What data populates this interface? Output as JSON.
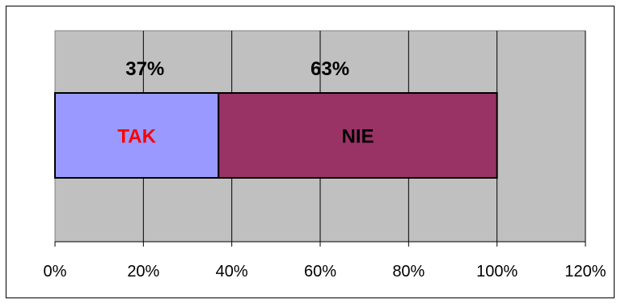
{
  "chart_data": {
    "type": "bar",
    "orientation": "horizontal",
    "stacked": true,
    "categories": [
      ""
    ],
    "series": [
      {
        "name": "TAK",
        "values": [
          37
        ],
        "percent_label": "37%",
        "color": "#9999ff",
        "label_color": "#ff0000"
      },
      {
        "name": "NIE",
        "values": [
          63
        ],
        "percent_label": "63%",
        "color": "#993366",
        "label_color": "#000000"
      }
    ],
    "xlim": [
      0,
      120
    ],
    "xticks": [
      0,
      20,
      40,
      60,
      80,
      100,
      120
    ],
    "xtick_labels": [
      "0%",
      "20%",
      "40%",
      "60%",
      "80%",
      "100%",
      "120%"
    ],
    "grid": true,
    "legend": "none",
    "title": "",
    "xlabel": "",
    "ylabel": "",
    "colors": {
      "plot_background": "#c0c0c0",
      "gridline": "#000000",
      "frame": "#000000"
    }
  }
}
